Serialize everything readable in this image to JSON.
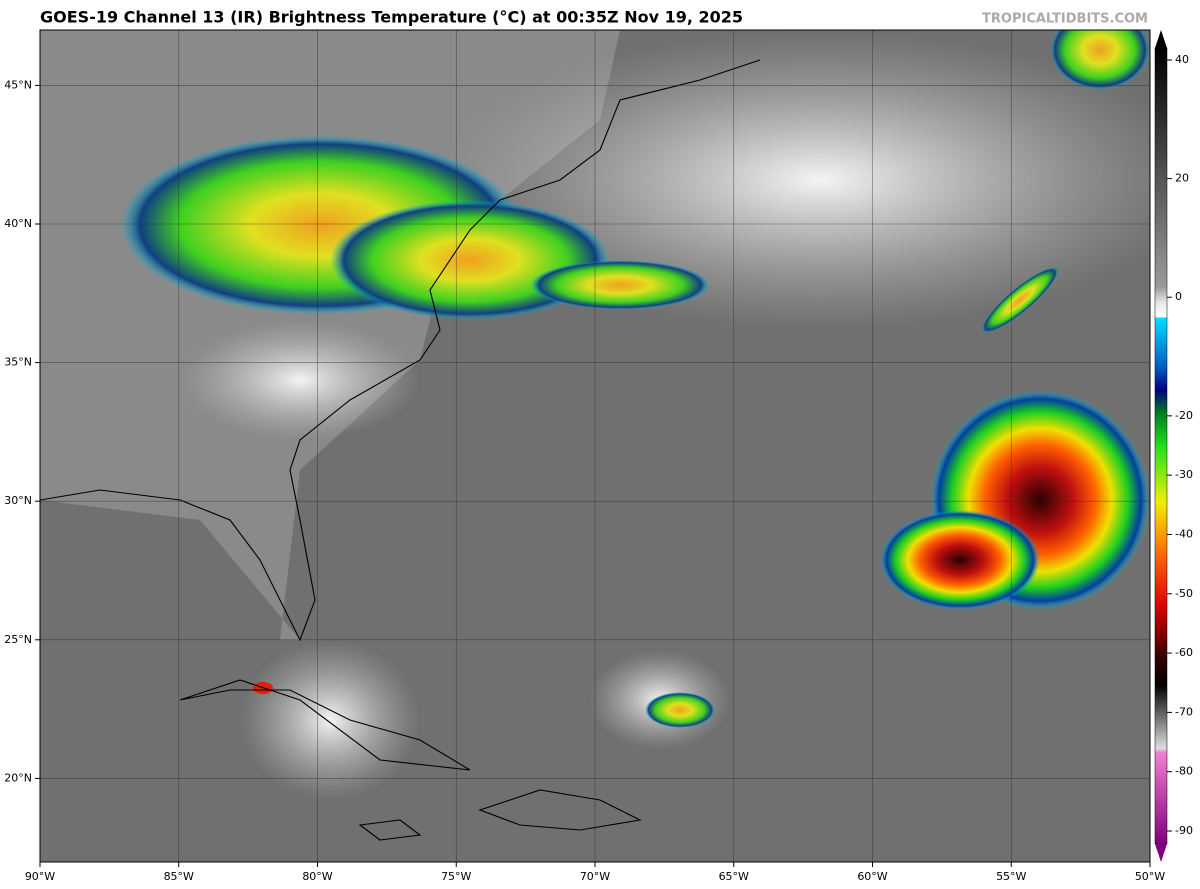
{
  "header": {
    "title": "GOES-19 Channel 13 (IR) Brightness Temperature (°C) at 00:35Z Nov 19, 2025",
    "watermark": "TROPICALTIDBITS.COM"
  },
  "map": {
    "lon_labels": [
      {
        "value": -90,
        "label": "90°W"
      },
      {
        "value": -85,
        "label": "85°W"
      },
      {
        "value": -80,
        "label": "80°W"
      },
      {
        "value": -75,
        "label": "75°W"
      },
      {
        "value": -70,
        "label": "70°W"
      },
      {
        "value": -65,
        "label": "65°W"
      },
      {
        "value": -60,
        "label": "60°W"
      },
      {
        "value": -55,
        "label": "55°W"
      },
      {
        "value": -50,
        "label": "50°W"
      }
    ],
    "lat_labels": [
      {
        "value": 45,
        "label": "45°N"
      },
      {
        "value": 40,
        "label": "40°N"
      },
      {
        "value": 35,
        "label": "35°N"
      },
      {
        "value": 30,
        "label": "30°N"
      },
      {
        "value": 25,
        "label": "25°N"
      },
      {
        "value": 20,
        "label": "20°N"
      }
    ]
  },
  "colorbar": {
    "ticks": [
      40,
      20,
      0,
      -20,
      -30,
      -40,
      -50,
      -60,
      -70,
      -80,
      -90
    ]
  }
}
